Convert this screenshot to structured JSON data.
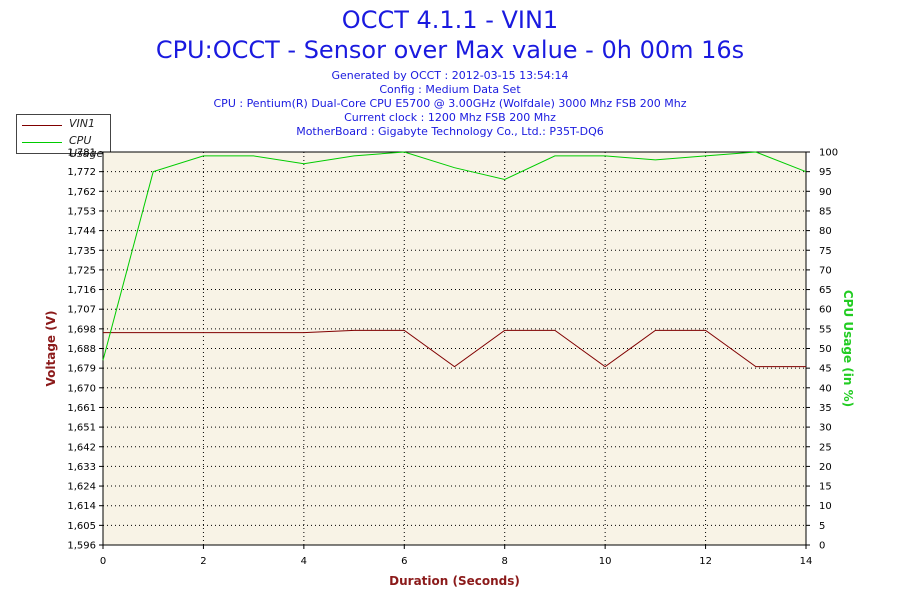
{
  "header": {
    "title": "OCCT 4.1.1 - VIN1",
    "subtitle": "CPU:OCCT - Sensor over Max value - 0h 00m 16s",
    "lines": [
      "Generated by OCCT : 2012-03-15 13:54:14",
      "Config : Medium Data Set",
      "CPU : Pentium(R) Dual-Core CPU E5700 @ 3.00GHz (Wolfdale) 3000 Mhz FSB 200 Mhz",
      "Current clock : 1200 Mhz FSB 200 Mhz",
      "MotherBoard : Gigabyte Technology Co., Ltd.: P35T-DQ6"
    ]
  },
  "legend": {
    "items": [
      {
        "label": "VIN1",
        "color": "#800000"
      },
      {
        "label": "CPU Usage",
        "color": "#00cc00"
      }
    ]
  },
  "chart_data": {
    "type": "line",
    "xlabel": "Duration (Seconds)",
    "ylabel": "Voltage (V)",
    "y2label": "CPU Usage (in %)",
    "xlim": [
      0,
      14
    ],
    "ylim": [
      1.596,
      1.781
    ],
    "y2lim": [
      0,
      100
    ],
    "x_ticks": [
      "0",
      "2",
      "4",
      "6",
      "8",
      "10",
      "12",
      "14"
    ],
    "y_ticks": [
      "1,596",
      "1,605",
      "1,614",
      "1,624",
      "1,633",
      "1,642",
      "1,651",
      "1,661",
      "1,670",
      "1,679",
      "1,688",
      "1,698",
      "1,707",
      "1,716",
      "1,725",
      "1,735",
      "1,744",
      "1,753",
      "1,762",
      "1,772",
      "1,781"
    ],
    "y2_ticks": [
      "0",
      "5",
      "10",
      "15",
      "20",
      "25",
      "30",
      "35",
      "40",
      "45",
      "50",
      "55",
      "60",
      "65",
      "70",
      "75",
      "80",
      "85",
      "90",
      "95",
      "100"
    ],
    "grid": true,
    "plot_background": "#f8f3e6",
    "series": [
      {
        "name": "VIN1",
        "axis": "left",
        "color": "#800000",
        "x": [
          0,
          1,
          2,
          3,
          4,
          5,
          6,
          7,
          8,
          9,
          10,
          11,
          12,
          13,
          14
        ],
        "values": [
          1.696,
          1.696,
          1.696,
          1.696,
          1.696,
          1.697,
          1.697,
          1.68,
          1.697,
          1.697,
          1.68,
          1.697,
          1.697,
          1.68,
          1.68
        ]
      },
      {
        "name": "CPU Usage",
        "axis": "right",
        "color": "#00cc00",
        "x": [
          0,
          1,
          2,
          3,
          4,
          5,
          6,
          7,
          8,
          9,
          10,
          11,
          12,
          13,
          14
        ],
        "values": [
          47,
          95,
          99,
          99,
          97,
          99,
          100,
          96,
          93,
          99,
          99,
          98,
          99,
          100,
          95
        ]
      }
    ]
  }
}
